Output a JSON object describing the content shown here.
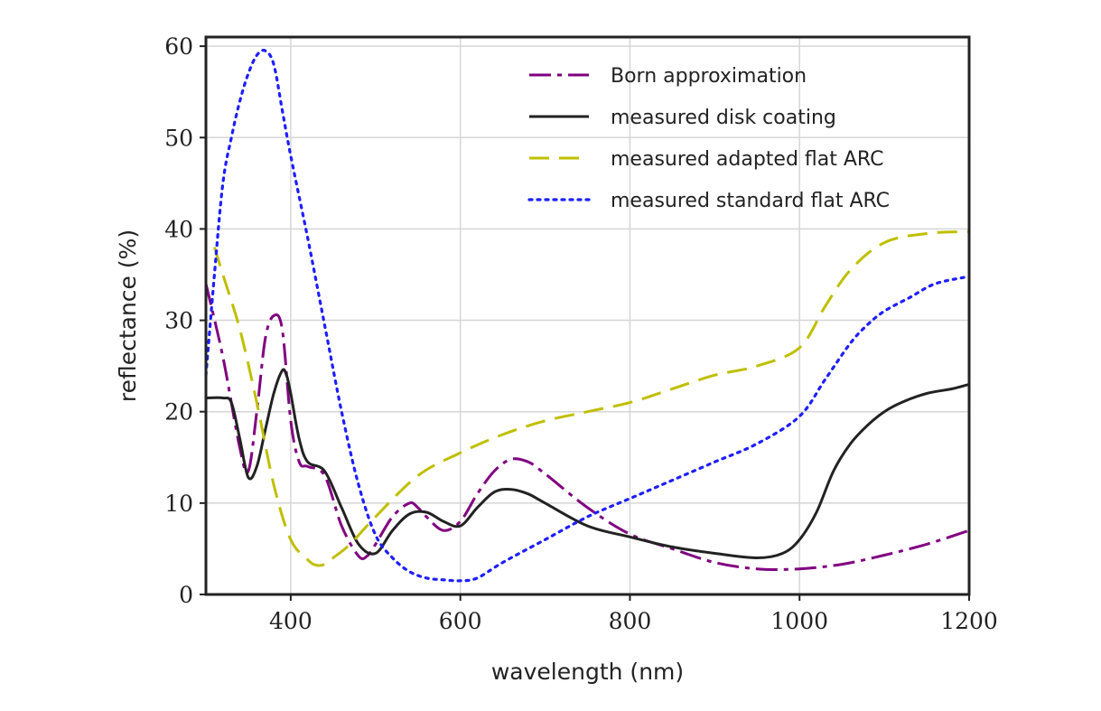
{
  "chart_data": {
    "type": "line",
    "title": "",
    "xlabel": "wavelength (nm)",
    "ylabel": "reflectance (%)",
    "xlim": [
      300,
      1200
    ],
    "ylim": [
      0,
      61
    ],
    "xticks": [
      400,
      600,
      800,
      1000,
      1200
    ],
    "yticks": [
      0,
      10,
      20,
      30,
      40,
      50,
      60
    ],
    "grid": true,
    "legend_position": "top-right",
    "series": [
      {
        "name": "Born approximation",
        "color": "#800080",
        "style": "dashdot",
        "x": [
          300,
          320,
          340,
          350,
          360,
          370,
          380,
          390,
          400,
          410,
          420,
          440,
          460,
          480,
          490,
          500,
          520,
          540,
          550,
          560,
          580,
          600,
          620,
          640,
          660,
          680,
          700,
          750,
          800,
          850,
          900,
          950,
          1000,
          1050,
          1100,
          1150,
          1200
        ],
        "y": [
          34,
          26,
          16,
          13.5,
          20,
          28,
          30.5,
          29,
          19,
          14.5,
          14,
          13,
          7.5,
          4.2,
          4.2,
          5.5,
          8.5,
          10,
          9.5,
          8.5,
          7,
          8,
          11,
          13.5,
          14.8,
          14.5,
          13.2,
          9.5,
          6.6,
          5,
          3.5,
          2.8,
          2.8,
          3.3,
          4.3,
          5.5,
          7
        ]
      },
      {
        "name": "measured disk coating",
        "color": "#222222",
        "style": "solid",
        "x": [
          300,
          320,
          330,
          340,
          350,
          360,
          370,
          380,
          390,
          395,
          400,
          410,
          420,
          440,
          460,
          480,
          500,
          520,
          540,
          560,
          580,
          600,
          620,
          640,
          660,
          680,
          700,
          750,
          800,
          850,
          900,
          950,
          980,
          1000,
          1020,
          1040,
          1060,
          1080,
          1100,
          1120,
          1150,
          1180,
          1200
        ],
        "y": [
          21.5,
          21.5,
          21,
          17,
          12.8,
          14,
          18,
          22,
          24.5,
          24,
          22,
          17,
          14.5,
          13.5,
          9.5,
          5.5,
          4.5,
          7,
          8.8,
          9,
          8,
          7.5,
          9.5,
          11.2,
          11.5,
          11,
          10,
          7.5,
          6.3,
          5.2,
          4.5,
          4,
          4.5,
          6,
          9,
          13.5,
          16.5,
          18.5,
          20,
          21,
          22,
          22.5,
          23
        ]
      },
      {
        "name": "measured adapted flat ARC",
        "color": "#BFBF00",
        "style": "dashed",
        "x": [
          310,
          320,
          340,
          360,
          380,
          400,
          420,
          430,
          440,
          450,
          470,
          500,
          550,
          600,
          650,
          700,
          750,
          800,
          850,
          900,
          950,
          1000,
          1030,
          1060,
          1100,
          1150,
          1200
        ],
        "y": [
          38,
          35,
          29,
          21,
          12,
          6,
          3.8,
          3.2,
          3.3,
          4,
          5.5,
          8.5,
          13,
          15.5,
          17.5,
          19,
          20,
          21,
          22.5,
          24,
          25,
          27,
          31.5,
          35.5,
          38.5,
          39.5,
          39.7
        ]
      },
      {
        "name": "measured standard flat ARC",
        "color": "#1E1EFF",
        "style": "dotted",
        "x": [
          300,
          310,
          320,
          330,
          340,
          350,
          360,
          370,
          380,
          390,
          400,
          420,
          440,
          460,
          480,
          500,
          520,
          540,
          560,
          580,
          600,
          620,
          650,
          700,
          750,
          800,
          850,
          900,
          950,
          1000,
          1030,
          1060,
          1080,
          1100,
          1130,
          1160,
          1200
        ],
        "y": [
          24,
          35,
          45,
          50,
          54,
          57,
          59,
          59.5,
          58,
          53,
          48,
          39,
          29.5,
          20,
          12,
          6.5,
          4,
          2.5,
          1.8,
          1.6,
          1.5,
          1.8,
          3.5,
          6,
          8.5,
          10.5,
          12.5,
          14.5,
          16.5,
          19.5,
          23.5,
          27.5,
          29.5,
          31,
          32.5,
          34,
          34.8
        ]
      }
    ]
  }
}
